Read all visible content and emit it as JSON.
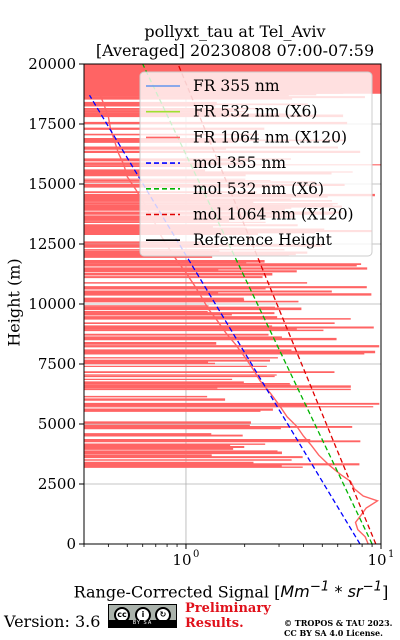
{
  "title_line1": "pollyxt_tau at Tel_Aviv",
  "title_line2": "[Averaged] 20230808 07:00-07:59",
  "footer": {
    "version": "Version: 3.6",
    "preliminary_line1": "Preliminary",
    "preliminary_line2": "Results.",
    "copyright_line1": "© TROPOS & TAU 2023.",
    "copyright_line2": "CC BY SA 4.0 License.",
    "license_badge": "BY SA",
    "license_icons": [
      "cc-icon",
      "by-icon"
    ]
  },
  "chart_data": {
    "type": "line",
    "title": "pollyxt_tau at Tel_Aviv [Averaged] 20230808 07:00-07:59",
    "xlabel_text": "Range-Corrected Signal [",
    "xlabel_math": "Mm^{-1} * sr^{-1}",
    "xlabel_close": "]",
    "ylabel": "Height (m)",
    "xscale": "log",
    "xlim": [
      0.3,
      10
    ],
    "ylim": [
      0,
      20000
    ],
    "grid": true,
    "legend_position": "top-right",
    "y_ticks": [
      0,
      2500,
      5000,
      7500,
      10000,
      12500,
      15000,
      17500,
      20000
    ],
    "y_tick_labels": [
      "0",
      "2500",
      "5000",
      "7500",
      "10000",
      "12500",
      "15000",
      "17500",
      "20000"
    ],
    "x_ticks": [
      1,
      10
    ],
    "x_tick_labels": [
      "10^0",
      "10^1"
    ],
    "series": [
      {
        "name": "FR 355 nm",
        "style": "solid",
        "color": "#6495ed",
        "values": []
      },
      {
        "name": "FR 532 nm (X6)",
        "style": "solid",
        "color": "#9fe030",
        "values": []
      },
      {
        "name": "FR 1064 nm (X120)",
        "style": "solid",
        "color": "#ff6464",
        "note_points": "approximate profile (x, height)",
        "values": [
          [
            8.6,
            0
          ],
          [
            8.3,
            300
          ],
          [
            7.6,
            600
          ],
          [
            7.4,
            900
          ],
          [
            7.9,
            1200
          ],
          [
            8.4,
            1500
          ],
          [
            9.6,
            1800
          ],
          [
            8.1,
            2000
          ],
          [
            7.3,
            2300
          ],
          [
            7.0,
            2600
          ],
          [
            6.2,
            2900
          ],
          [
            5.4,
            3300
          ],
          [
            4.8,
            3700
          ],
          [
            4.4,
            4100
          ],
          [
            4.0,
            4500
          ],
          [
            3.7,
            4900
          ],
          [
            3.3,
            5300
          ],
          [
            3.0,
            5800
          ],
          [
            2.7,
            6300
          ],
          [
            2.4,
            6800
          ],
          [
            2.2,
            7300
          ],
          [
            2.0,
            7800
          ],
          [
            1.8,
            8300
          ],
          [
            1.6,
            8800
          ],
          [
            1.45,
            9300
          ],
          [
            1.3,
            9800
          ],
          [
            1.2,
            10300
          ],
          [
            1.1,
            10800
          ],
          [
            1.0,
            11300
          ],
          [
            0.9,
            11800
          ],
          [
            0.82,
            12300
          ],
          [
            0.75,
            12800
          ],
          [
            0.7,
            13300
          ],
          [
            0.65,
            13800
          ],
          [
            0.6,
            14300
          ],
          [
            0.55,
            14800
          ],
          [
            0.5,
            15300
          ],
          [
            0.48,
            15800
          ],
          [
            0.45,
            16300
          ],
          [
            0.43,
            16800
          ],
          [
            0.41,
            17300
          ],
          [
            0.4,
            17800
          ],
          [
            0.38,
            18300
          ],
          [
            0.36,
            18800
          ],
          [
            0.35,
            19300
          ],
          [
            0.34,
            19800
          ],
          [
            0.34,
            20000
          ]
        ]
      },
      {
        "name": "mol 355 nm",
        "style": "dashed",
        "color": "#0000ff",
        "values": [
          [
            7.8,
            0
          ],
          [
            0.32,
            18700
          ]
        ]
      },
      {
        "name": "mol 532 nm (X6)",
        "style": "dashed",
        "color": "#00b400",
        "values": [
          [
            9.0,
            0
          ],
          [
            0.6,
            20000
          ]
        ]
      },
      {
        "name": "mol 1064 nm (X120)",
        "style": "dashed",
        "color": "#e00000",
        "values": [
          [
            9.4,
            0
          ],
          [
            0.91,
            20000
          ]
        ]
      },
      {
        "name": "Reference Height",
        "style": "solid",
        "color": "#000000",
        "values": []
      }
    ]
  }
}
